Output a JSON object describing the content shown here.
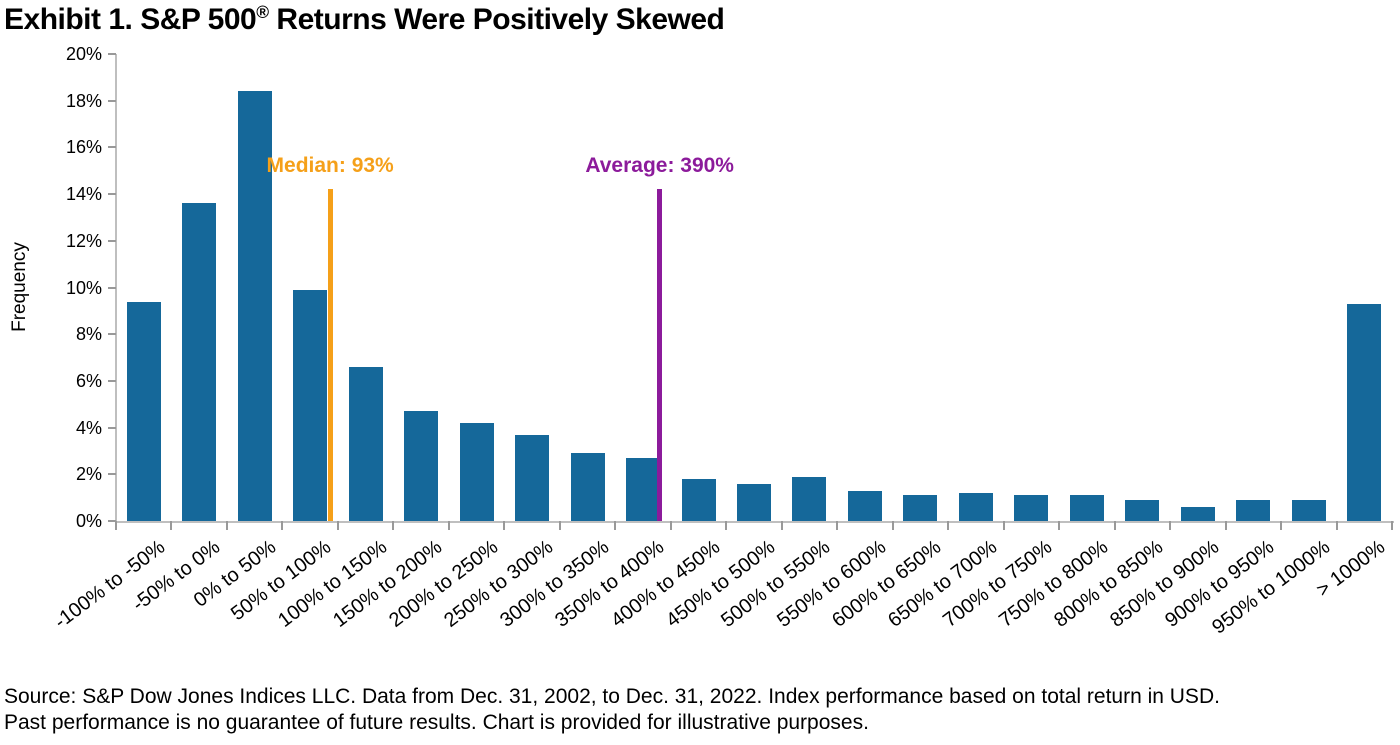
{
  "title": {
    "prefix": "Exhibit 1. S&P 500",
    "registered_mark": "®",
    "suffix": " Returns Were Positively Skewed"
  },
  "chart_data": {
    "type": "bar",
    "title": "Exhibit 1. S&P 500® Returns Were Positively Skewed",
    "xlabel": "",
    "ylabel": "Frequency",
    "ylim": [
      0,
      20
    ],
    "ytick_step": 2,
    "ytick_suffix": "%",
    "grid": false,
    "legend": "none",
    "bin_start": -100,
    "bin_width": 50,
    "categories": [
      "-100% to -50%",
      "-50% to 0%",
      "0% to 50%",
      "50% to 100%",
      "100% to 150%",
      "150% to 200%",
      "200% to 250%",
      "250% to 300%",
      "300% to 350%",
      "350% to 400%",
      "400% to 450%",
      "450% to 500%",
      "500% to 550%",
      "550% to 600%",
      "600% to 650%",
      "650% to 700%",
      "700% to 750%",
      "750% to 800%",
      "800% to 850%",
      "850% to 900%",
      "900% to 950%",
      "950% to 1000%",
      "> 1000%"
    ],
    "values": [
      9.4,
      13.6,
      18.4,
      9.9,
      6.6,
      4.7,
      4.2,
      3.7,
      2.9,
      2.7,
      1.8,
      1.6,
      1.9,
      1.3,
      1.1,
      1.2,
      1.1,
      1.1,
      0.9,
      0.6,
      0.9,
      0.9,
      9.3
    ],
    "annotations": [
      {
        "id": "median",
        "label": "Median: 93%",
        "value": 93,
        "color": "#F5A019"
      },
      {
        "id": "average",
        "label": "Average: 390%",
        "value": 390,
        "color": "#8C1B9B"
      }
    ],
    "colors": {
      "bar": "#15689A",
      "axis": "#BFBFBF",
      "tick": "#999999",
      "text": "#000000"
    }
  },
  "footer": {
    "line1": "Source: S&P Dow Jones Indices LLC. Data from Dec. 31, 2002, to Dec. 31, 2022. Index performance based on total return in USD.",
    "line2": "Past performance is no guarantee of future results. Chart is provided for illustrative purposes."
  }
}
